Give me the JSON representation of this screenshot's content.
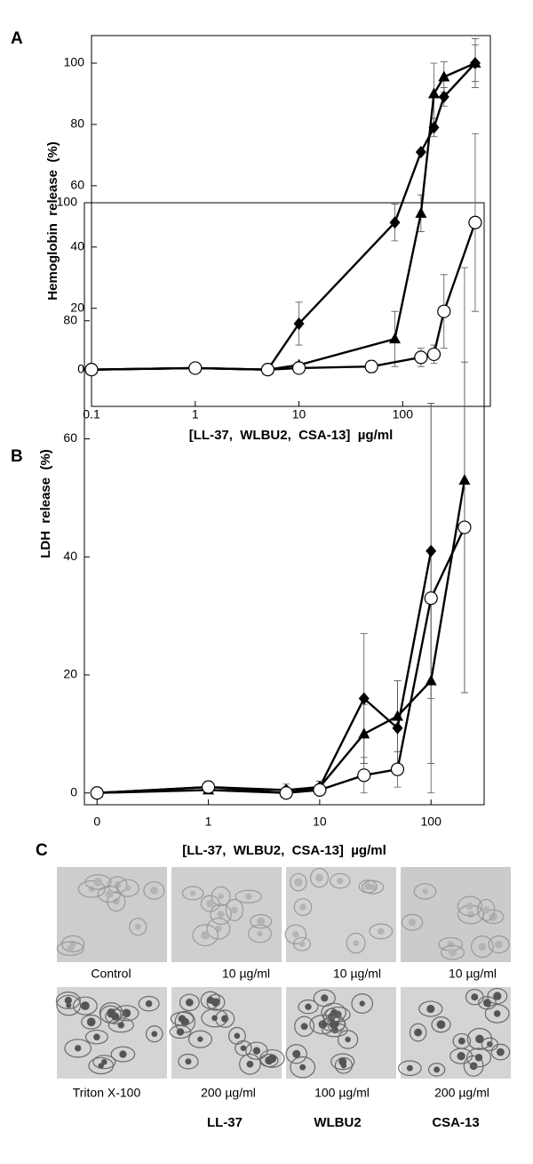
{
  "chart_data": [
    {
      "type": "line",
      "panel_label": "A",
      "x_label": "[LL-37,  WLBU2,  CSA-13]  µg/ml",
      "y_label": "Hemoglobin  release  (%)",
      "log_x": true,
      "xlim": [
        0.1,
        700
      ],
      "xticks": [
        0.1,
        1,
        10,
        100
      ],
      "ylim": [
        -12,
        109
      ],
      "yticks": [
        0,
        20,
        40,
        60,
        80,
        100
      ],
      "series": [
        {
          "marker": "diamond",
          "color": "#000000",
          "x": [
            0.1,
            1,
            5,
            10,
            84,
            150,
            200,
            250,
            500
          ],
          "values": [
            0,
            0.5,
            0,
            15,
            48,
            71,
            79,
            89,
            100
          ],
          "errors": [
            0,
            1,
            1,
            7,
            6,
            0,
            3,
            3,
            8
          ]
        },
        {
          "marker": "triangle",
          "color": "#000000",
          "x": [
            0.1,
            1,
            5,
            10,
            84,
            150,
            200,
            250,
            500
          ],
          "values": [
            0,
            0.5,
            0,
            1.5,
            10,
            51,
            90,
            95.5,
            100
          ],
          "errors": [
            0,
            0.5,
            0.5,
            1,
            9,
            6,
            10,
            5,
            6
          ]
        },
        {
          "marker": "circle",
          "color": "#000000",
          "x": [
            0.1,
            1,
            5,
            10,
            50,
            150,
            200,
            250,
            500
          ],
          "values": [
            0,
            0.5,
            0,
            0.5,
            1,
            4,
            5,
            19,
            48
          ],
          "errors": [
            0,
            0.5,
            0.5,
            0.5,
            2,
            3,
            3,
            12,
            29
          ]
        }
      ]
    },
    {
      "type": "line",
      "panel_label": "B",
      "x_label": "[LL-37,  WLBU2,  CSA-13]  µg/ml",
      "y_label": "LDH  release  (%)",
      "log_x": true,
      "xlim": [
        0.077,
        300
      ],
      "xticks": [
        {
          "value": 0.1,
          "label": "0"
        },
        1,
        10,
        100
      ],
      "ylim": [
        -2,
        100
      ],
      "yticks": [
        0,
        20,
        40,
        60,
        80,
        100
      ],
      "series": [
        {
          "marker": "diamond",
          "color": "#000000",
          "x": [
            0.1,
            1,
            5,
            10,
            25,
            50,
            100
          ],
          "values": [
            0,
            1,
            0.5,
            1,
            16,
            11,
            41
          ],
          "errors": [
            0,
            1,
            1,
            1,
            11,
            8,
            25
          ]
        },
        {
          "marker": "triangle",
          "color": "#000000",
          "x": [
            0.1,
            1,
            5,
            10,
            25,
            50,
            100,
            200
          ],
          "values": [
            0,
            0.5,
            0,
            1,
            10,
            13,
            19,
            53
          ],
          "errors": [
            0,
            0.5,
            0.5,
            1,
            5,
            6,
            14,
            36
          ]
        },
        {
          "marker": "circle",
          "color": "#000000",
          "x": [
            0.1,
            1,
            5,
            10,
            25,
            50,
            100,
            200
          ],
          "values": [
            0,
            1,
            0,
            0.5,
            3,
            4,
            33,
            45
          ],
          "errors": [
            0,
            1,
            0.5,
            0.5,
            3,
            3,
            33,
            28
          ]
        }
      ]
    }
  ],
  "panel_c": {
    "panel_label": "C",
    "row1": [
      "Control",
      "10 µg/ml",
      "10 µg/ml",
      "10 µg/ml"
    ],
    "row2": [
      "Triton X-100",
      "200 µg/ml",
      "100 µg/ml",
      "200 µg/ml"
    ],
    "peptides": [
      "LL-37",
      "WLBU2",
      "CSA-13"
    ]
  }
}
